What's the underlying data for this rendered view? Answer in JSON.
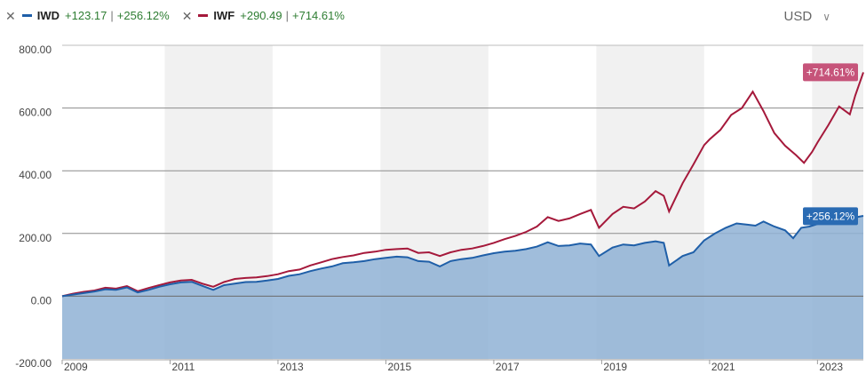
{
  "legend": {
    "items": [
      {
        "remove_icon": "close-icon",
        "ticker": "IWD",
        "change_abs": "+123.17",
        "change_pct": "+256.12%",
        "color": "#1f5fa8"
      },
      {
        "remove_icon": "close-icon",
        "ticker": "IWF",
        "change_abs": "+290.49",
        "change_pct": "+714.61%",
        "color": "#a5193b"
      }
    ],
    "separator": "|"
  },
  "currency": {
    "label": "USD",
    "icon": "chevron-down-icon"
  },
  "colors": {
    "iwd_line": "#1f5fa8",
    "iwd_fill": "#8fb2d5",
    "iwf_line": "#a5193b",
    "iwf_label": "#c6547a",
    "iwd_label": "#2a6bb3",
    "band": "#f1f1f1",
    "grid": "#8c8c8c"
  },
  "chart_data": {
    "type": "area",
    "x_tick_labels": [
      "2009",
      "2011",
      "2013",
      "2015",
      "2017",
      "2019",
      "2021",
      "2023"
    ],
    "y_tick_labels": [
      "800.00",
      "600.00",
      "400.00",
      "200.00",
      "0.00",
      "-200.00"
    ],
    "ylim": [
      -200,
      800
    ],
    "xlim": [
      2009.0,
      2023.85
    ],
    "grid": true,
    "shaded_year_bands": [
      [
        2010.9,
        2012.9
      ],
      [
        2014.9,
        2016.9
      ],
      [
        2018.9,
        2020.9
      ],
      [
        2022.9,
        2023.85
      ]
    ],
    "series": [
      {
        "name": "IWD",
        "end_label": "+256.12%",
        "points": [
          [
            2009.0,
            0
          ],
          [
            2009.2,
            5
          ],
          [
            2009.4,
            10
          ],
          [
            2009.6,
            15
          ],
          [
            2009.8,
            22
          ],
          [
            2010.0,
            20
          ],
          [
            2010.2,
            28
          ],
          [
            2010.4,
            12
          ],
          [
            2010.6,
            20
          ],
          [
            2010.8,
            30
          ],
          [
            2011.0,
            38
          ],
          [
            2011.2,
            44
          ],
          [
            2011.4,
            46
          ],
          [
            2011.6,
            33
          ],
          [
            2011.8,
            20
          ],
          [
            2012.0,
            35
          ],
          [
            2012.2,
            40
          ],
          [
            2012.4,
            45
          ],
          [
            2012.6,
            46
          ],
          [
            2012.8,
            50
          ],
          [
            2013.0,
            55
          ],
          [
            2013.2,
            65
          ],
          [
            2013.4,
            70
          ],
          [
            2013.6,
            80
          ],
          [
            2013.8,
            88
          ],
          [
            2014.0,
            95
          ],
          [
            2014.2,
            105
          ],
          [
            2014.4,
            108
          ],
          [
            2014.6,
            112
          ],
          [
            2014.8,
            118
          ],
          [
            2015.0,
            122
          ],
          [
            2015.2,
            126
          ],
          [
            2015.4,
            124
          ],
          [
            2015.6,
            112
          ],
          [
            2015.8,
            110
          ],
          [
            2016.0,
            95
          ],
          [
            2016.2,
            112
          ],
          [
            2016.4,
            118
          ],
          [
            2016.6,
            122
          ],
          [
            2016.8,
            130
          ],
          [
            2017.0,
            137
          ],
          [
            2017.2,
            142
          ],
          [
            2017.4,
            145
          ],
          [
            2017.6,
            150
          ],
          [
            2017.8,
            158
          ],
          [
            2018.0,
            172
          ],
          [
            2018.2,
            160
          ],
          [
            2018.4,
            162
          ],
          [
            2018.6,
            168
          ],
          [
            2018.8,
            165
          ],
          [
            2018.95,
            128
          ],
          [
            2019.2,
            155
          ],
          [
            2019.4,
            165
          ],
          [
            2019.6,
            162
          ],
          [
            2019.8,
            170
          ],
          [
            2020.0,
            175
          ],
          [
            2020.15,
            170
          ],
          [
            2020.25,
            98
          ],
          [
            2020.5,
            128
          ],
          [
            2020.7,
            140
          ],
          [
            2020.9,
            178
          ],
          [
            2021.1,
            200
          ],
          [
            2021.3,
            218
          ],
          [
            2021.5,
            232
          ],
          [
            2021.7,
            228
          ],
          [
            2021.85,
            225
          ],
          [
            2022.0,
            238
          ],
          [
            2022.2,
            222
          ],
          [
            2022.4,
            210
          ],
          [
            2022.55,
            185
          ],
          [
            2022.7,
            218
          ],
          [
            2022.85,
            222
          ],
          [
            2023.0,
            230
          ],
          [
            2023.2,
            238
          ],
          [
            2023.4,
            242
          ],
          [
            2023.6,
            248
          ],
          [
            2023.85,
            256
          ]
        ]
      },
      {
        "name": "IWF",
        "end_label": "+714.61%",
        "points": [
          [
            2009.0,
            0
          ],
          [
            2009.2,
            8
          ],
          [
            2009.4,
            14
          ],
          [
            2009.6,
            18
          ],
          [
            2009.8,
            27
          ],
          [
            2010.0,
            24
          ],
          [
            2010.2,
            32
          ],
          [
            2010.4,
            16
          ],
          [
            2010.6,
            26
          ],
          [
            2010.8,
            35
          ],
          [
            2011.0,
            44
          ],
          [
            2011.2,
            50
          ],
          [
            2011.4,
            52
          ],
          [
            2011.6,
            40
          ],
          [
            2011.8,
            30
          ],
          [
            2012.0,
            45
          ],
          [
            2012.2,
            55
          ],
          [
            2012.4,
            58
          ],
          [
            2012.6,
            60
          ],
          [
            2012.8,
            64
          ],
          [
            2013.0,
            70
          ],
          [
            2013.2,
            80
          ],
          [
            2013.4,
            85
          ],
          [
            2013.6,
            98
          ],
          [
            2013.8,
            108
          ],
          [
            2014.0,
            118
          ],
          [
            2014.2,
            125
          ],
          [
            2014.4,
            130
          ],
          [
            2014.6,
            138
          ],
          [
            2014.8,
            142
          ],
          [
            2015.0,
            148
          ],
          [
            2015.2,
            150
          ],
          [
            2015.4,
            152
          ],
          [
            2015.6,
            138
          ],
          [
            2015.8,
            140
          ],
          [
            2016.0,
            128
          ],
          [
            2016.2,
            140
          ],
          [
            2016.4,
            148
          ],
          [
            2016.6,
            152
          ],
          [
            2016.8,
            160
          ],
          [
            2017.0,
            170
          ],
          [
            2017.2,
            182
          ],
          [
            2017.4,
            192
          ],
          [
            2017.6,
            205
          ],
          [
            2017.8,
            222
          ],
          [
            2018.0,
            252
          ],
          [
            2018.2,
            240
          ],
          [
            2018.4,
            248
          ],
          [
            2018.6,
            262
          ],
          [
            2018.8,
            275
          ],
          [
            2018.95,
            218
          ],
          [
            2019.2,
            262
          ],
          [
            2019.4,
            285
          ],
          [
            2019.6,
            280
          ],
          [
            2019.8,
            302
          ],
          [
            2020.0,
            335
          ],
          [
            2020.15,
            320
          ],
          [
            2020.25,
            270
          ],
          [
            2020.5,
            360
          ],
          [
            2020.7,
            420
          ],
          [
            2020.9,
            482
          ],
          [
            2021.0,
            500
          ],
          [
            2021.2,
            530
          ],
          [
            2021.4,
            578
          ],
          [
            2021.6,
            600
          ],
          [
            2021.8,
            652
          ],
          [
            2022.0,
            590
          ],
          [
            2022.2,
            520
          ],
          [
            2022.4,
            480
          ],
          [
            2022.6,
            450
          ],
          [
            2022.75,
            425
          ],
          [
            2022.9,
            460
          ],
          [
            2023.0,
            490
          ],
          [
            2023.2,
            545
          ],
          [
            2023.4,
            605
          ],
          [
            2023.6,
            580
          ],
          [
            2023.7,
            640
          ],
          [
            2023.85,
            714
          ]
        ]
      }
    ]
  }
}
